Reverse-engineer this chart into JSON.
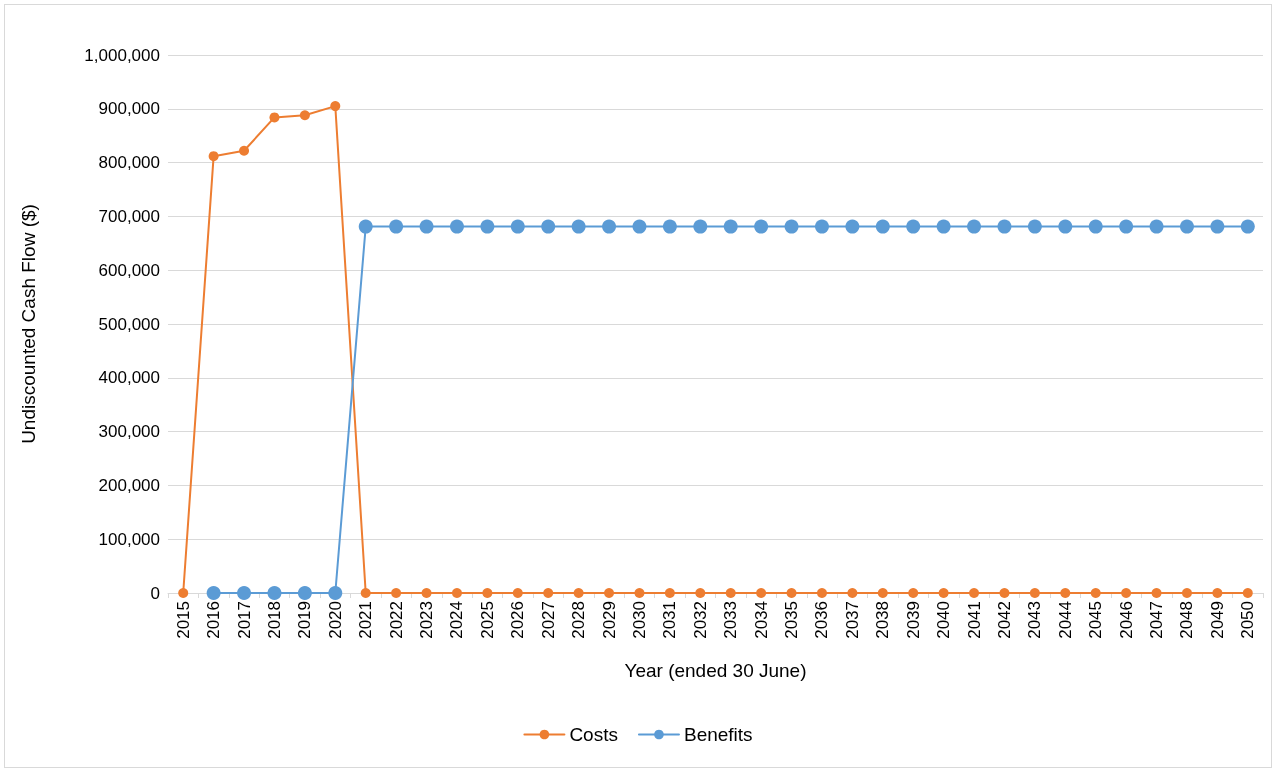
{
  "chart_data": {
    "type": "line",
    "xlabel": "Year (ended 30 June)",
    "ylabel": "Undiscounted Cash Flow ($)",
    "categories": [
      "2015",
      "2016",
      "2017",
      "2018",
      "2019",
      "2020",
      "2021",
      "2022",
      "2023",
      "2024",
      "2025",
      "2026",
      "2027",
      "2028",
      "2029",
      "2030",
      "2031",
      "2032",
      "2033",
      "2034",
      "2035",
      "2036",
      "2037",
      "2038",
      "2039",
      "2040",
      "2041",
      "2042",
      "2043",
      "2044",
      "2045",
      "2046",
      "2047",
      "2048",
      "2049",
      "2050"
    ],
    "series": [
      {
        "name": "Costs",
        "color": "#ed7d31",
        "values": [
          0,
          812000,
          822000,
          884000,
          888000,
          905000,
          0,
          0,
          0,
          0,
          0,
          0,
          0,
          0,
          0,
          0,
          0,
          0,
          0,
          0,
          0,
          0,
          0,
          0,
          0,
          0,
          0,
          0,
          0,
          0,
          0,
          0,
          0,
          0,
          0,
          0
        ]
      },
      {
        "name": "Benefits",
        "color": "#5b9bd5",
        "values": [
          null,
          0,
          0,
          0,
          0,
          0,
          681000,
          681000,
          681000,
          681000,
          681000,
          681000,
          681000,
          681000,
          681000,
          681000,
          681000,
          681000,
          681000,
          681000,
          681000,
          681000,
          681000,
          681000,
          681000,
          681000,
          681000,
          681000,
          681000,
          681000,
          681000,
          681000,
          681000,
          681000,
          681000,
          681000
        ]
      }
    ],
    "ylim": [
      0,
      1000000
    ],
    "yticks": [
      0,
      {
        "value": 100000,
        "label": "100,000"
      },
      {
        "value": 200000,
        "label": "200,000"
      },
      {
        "value": 300000,
        "label": "300,000"
      },
      {
        "value": 400000,
        "label": "400,000"
      },
      {
        "value": 500000,
        "label": "500,000"
      },
      {
        "value": 600000,
        "label": "600,000"
      },
      {
        "value": 700000,
        "label": "700,000"
      },
      {
        "value": 800000,
        "label": "800,000"
      },
      {
        "value": 900000,
        "label": "900,000"
      },
      {
        "value": 1000000,
        "label": "1,000,000"
      }
    ],
    "grid": "y",
    "legend": "bottom",
    "marker": "circle",
    "line_style": "solid"
  }
}
